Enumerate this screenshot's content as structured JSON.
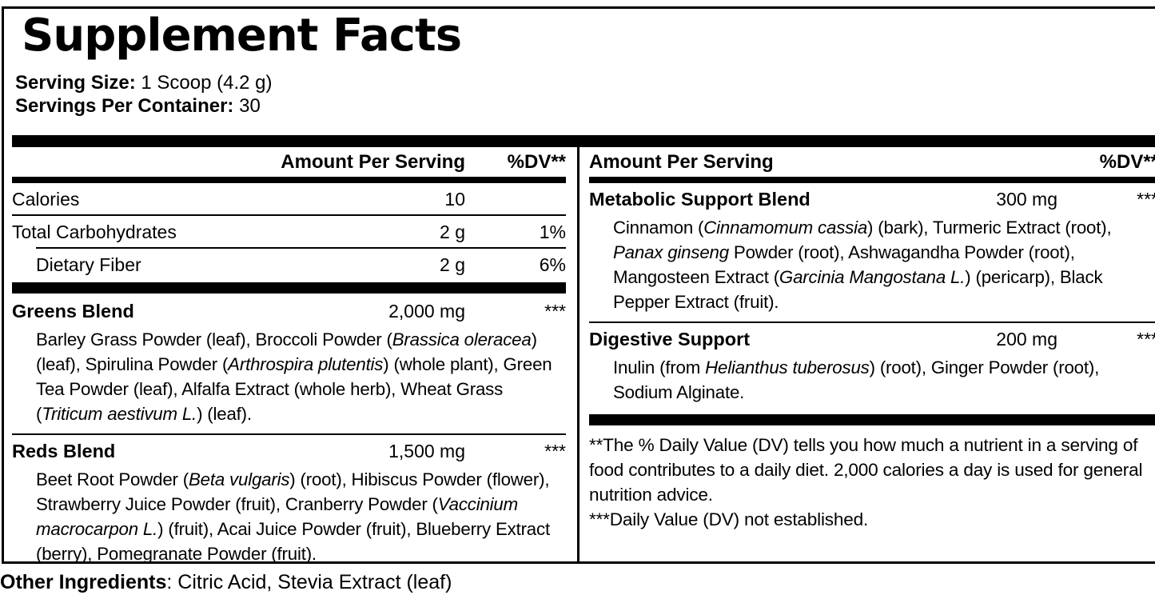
{
  "label": {
    "title": "Supplement Facts",
    "serving_size_label": "Serving Size:",
    "serving_size_value": " 1 Scoop (4.2 g)",
    "servings_per_container_label": "Servings Per Container:",
    "servings_per_container_value": " 30",
    "header": {
      "amount": "Amount Per Serving",
      "dv": "%DV**"
    },
    "left_column": {
      "blocks": [
        {
          "type": "header",
          "amount_side": "amt"
        },
        {
          "type": "bar",
          "weight": "medium"
        },
        {
          "type": "nutrient",
          "name": "Calories",
          "amount": "10",
          "dv": ""
        },
        {
          "type": "rule"
        },
        {
          "type": "nutrient",
          "name": "Total Carbohydrates",
          "amount": "2 g",
          "dv": "1%"
        },
        {
          "type": "rule",
          "indent": true
        },
        {
          "type": "nutrient",
          "name": "Dietary Fiber",
          "amount": "2 g",
          "dv": "6%",
          "indent": true
        },
        {
          "type": "bar",
          "weight": "thick"
        },
        {
          "type": "blend",
          "name": "Greens Blend",
          "amount": "2,000 mg",
          "dv": "***",
          "description": [
            {
              "t": "Barley Grass Powder (leaf), Broccoli Powder ("
            },
            {
              "t": "Brassica oleracea",
              "i": true
            },
            {
              "t": ") (leaf), Spirulina Powder ("
            },
            {
              "t": "Arthrospira plutentis",
              "i": true
            },
            {
              "t": ") (whole plant), Green Tea Powder (leaf), Alfalfa Extract (whole herb), Wheat Grass ("
            },
            {
              "t": "Triticum aestivum L.",
              "i": true
            },
            {
              "t": ") (leaf)."
            }
          ]
        },
        {
          "type": "rule"
        },
        {
          "type": "blend",
          "name": "Reds Blend",
          "amount": "1,500 mg",
          "dv": "***",
          "description": [
            {
              "t": "Beet Root Powder ("
            },
            {
              "t": "Beta vulgaris",
              "i": true
            },
            {
              "t": ") (root), Hibiscus Powder (flower), Strawberry Juice Powder (fruit), Cranberry Powder ("
            },
            {
              "t": "Vaccinium macrocarpon L.",
              "i": true
            },
            {
              "t": ") (fruit), Acai Juice Powder (fruit), Blueberry Extract (berry), Pomegranate Powder (fruit)."
            }
          ]
        }
      ]
    },
    "right_column": {
      "blocks": [
        {
          "type": "header",
          "amount_side": "name"
        },
        {
          "type": "bar",
          "weight": "medium"
        },
        {
          "type": "blend",
          "name": "Metabolic Support Blend",
          "amount": "300 mg",
          "dv": "***",
          "description": [
            {
              "t": "Cinnamon ("
            },
            {
              "t": "Cinnamomum cassia",
              "i": true
            },
            {
              "t": ") (bark), Turmeric Extract (root), "
            },
            {
              "t": "Panax ginseng",
              "i": true
            },
            {
              "t": " Powder (root), Ashwagandha Powder (root), Mangosteen Extract ("
            },
            {
              "t": "Garcinia Mangostana L.",
              "i": true
            },
            {
              "t": ") (pericarp), Black Pepper Extract (fruit)."
            }
          ]
        },
        {
          "type": "rule"
        },
        {
          "type": "blend",
          "name": "Digestive Support",
          "amount": "200 mg",
          "dv": "***",
          "description": [
            {
              "t": "Inulin (from "
            },
            {
              "t": "Helianthus tuberosus",
              "i": true
            },
            {
              "t": ") (root), Ginger Powder (root), Sodium Alginate."
            }
          ]
        },
        {
          "type": "bar",
          "weight": "thick"
        },
        {
          "type": "footnote",
          "lines": [
            "**The % Daily Value (DV) tells you how much a nutrient in a serving of food contributes to a daily diet. 2,000 calories a day is used for general nutrition advice.",
            "***Daily Value (DV) not established."
          ]
        }
      ]
    },
    "other_ingredients_label": "Other Ingredients",
    "other_ingredients_value": ": Citric Acid, Stevia Extract (leaf)"
  },
  "colors": {
    "text": "#000000",
    "background": "#ffffff",
    "bar": "#000000"
  }
}
